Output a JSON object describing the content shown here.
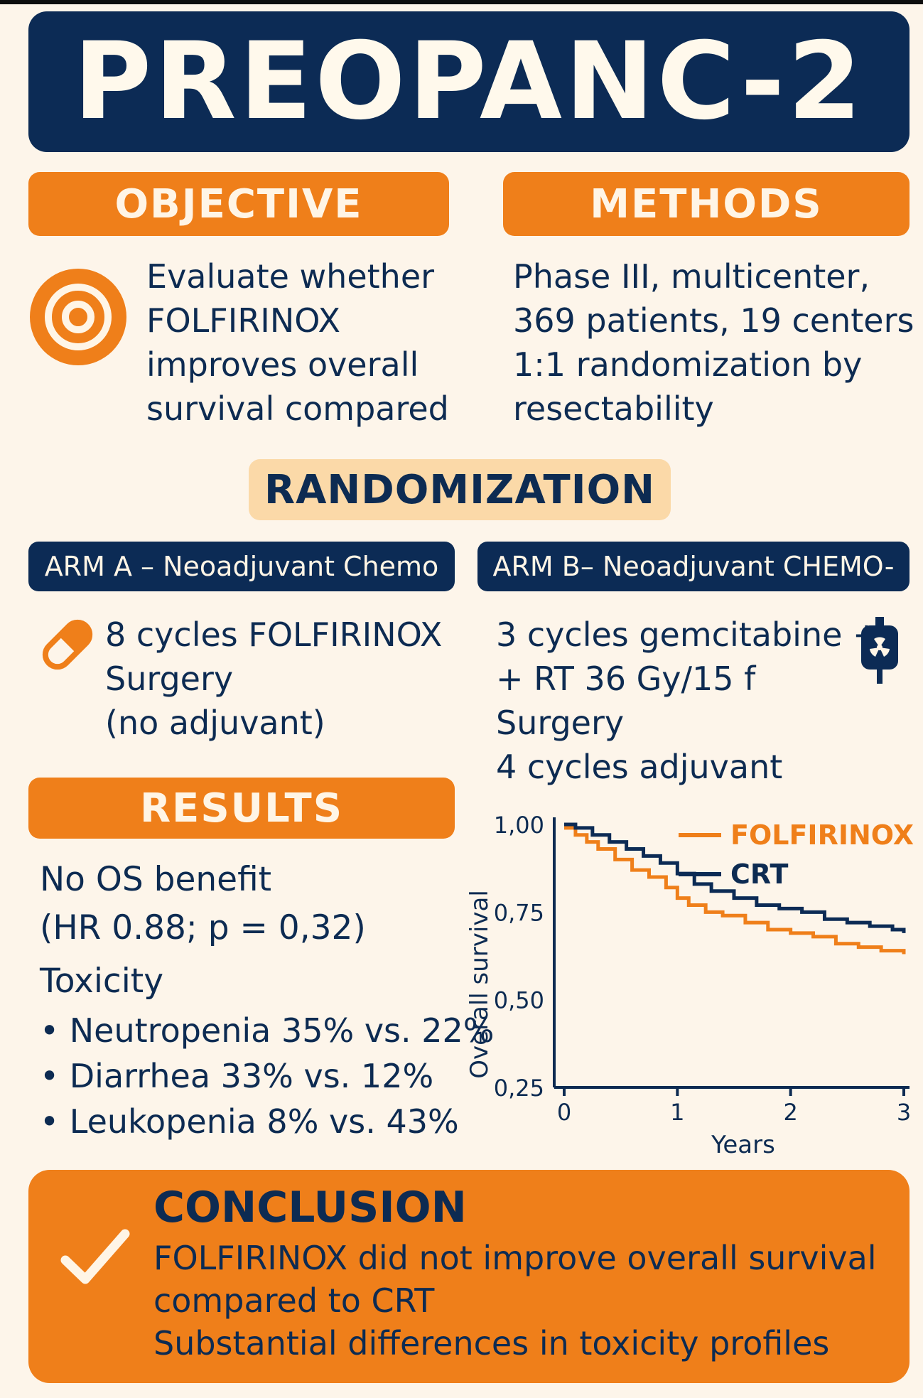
{
  "title": "PREOPANC-2",
  "objective": {
    "heading": "OBJECTIVE",
    "icon": "target-icon",
    "lines": [
      "Evaluate whether",
      "FOLFIRINOX",
      "improves overall",
      "survival compared"
    ]
  },
  "methods": {
    "heading": "METHODS",
    "lines": [
      "Phase III, multicenter,",
      "369 patients, 19 centers",
      "1:1 randomization by",
      "resectability"
    ]
  },
  "randomization": {
    "heading": "RANDOMIZATION"
  },
  "arm_a": {
    "label": "ARM A – Neoadjuvant Chemo",
    "icon": "pill-icon",
    "lines": [
      "8 cycles FOLFIRINOX",
      "Surgery",
      "(no adjuvant)"
    ]
  },
  "arm_b": {
    "label": "ARM B– Neoadjuvant CHEMO-",
    "icon": "radiation-bag-icon",
    "lines": [
      "3 cycles gemcitabine +",
      "+ RT 36 Gy/15 f",
      "Surgery",
      "4 cycles adjuvant"
    ]
  },
  "results": {
    "heading": "RESULTS",
    "os_lines": [
      "No OS benefit",
      "(HR 0.88; p = 0,32)"
    ],
    "toxicity_heading": "Toxicity",
    "bullets": [
      "Neutropenia 35% vs. 22%",
      "Diarrhea 33% vs. 12%",
      "Leukopenia 8% vs. 43%"
    ]
  },
  "chart_data": {
    "type": "line",
    "title": "",
    "xlabel": "Years",
    "ylabel": "Overall survival",
    "xlim": [
      0,
      3
    ],
    "ylim": [
      0.25,
      1.0
    ],
    "x_ticks": [
      "0",
      "1",
      "2",
      "3"
    ],
    "y_ticks": [
      "0,25",
      "0,50",
      "0,75",
      "1,00"
    ],
    "legend_position": "top-right",
    "series": [
      {
        "name": "FOLFIRINOX",
        "color": "#ef7f1a",
        "x": [
          0,
          0.1,
          0.2,
          0.3,
          0.45,
          0.6,
          0.75,
          0.9,
          1.0,
          1.1,
          1.25,
          1.4,
          1.6,
          1.8,
          2.0,
          2.2,
          2.4,
          2.6,
          2.8,
          3.0
        ],
        "y": [
          0.99,
          0.97,
          0.95,
          0.93,
          0.9,
          0.87,
          0.85,
          0.82,
          0.79,
          0.77,
          0.75,
          0.74,
          0.72,
          0.7,
          0.69,
          0.68,
          0.66,
          0.65,
          0.64,
          0.63
        ]
      },
      {
        "name": "CRT",
        "color": "#0c2b55",
        "x": [
          0,
          0.1,
          0.25,
          0.4,
          0.55,
          0.7,
          0.85,
          1.0,
          1.15,
          1.3,
          1.5,
          1.7,
          1.9,
          2.1,
          2.3,
          2.5,
          2.7,
          2.9,
          3.0
        ],
        "y": [
          1.0,
          0.99,
          0.97,
          0.95,
          0.93,
          0.91,
          0.89,
          0.86,
          0.83,
          0.81,
          0.79,
          0.77,
          0.76,
          0.75,
          0.73,
          0.72,
          0.71,
          0.7,
          0.69
        ]
      }
    ]
  },
  "conclusion": {
    "heading": "CONCLUSION",
    "icon": "checkmark-icon",
    "lines": [
      "FOLFIRINOX did not improve overall survival",
      "compared to CRT",
      "Substantial differences in toxicity profiles"
    ]
  }
}
